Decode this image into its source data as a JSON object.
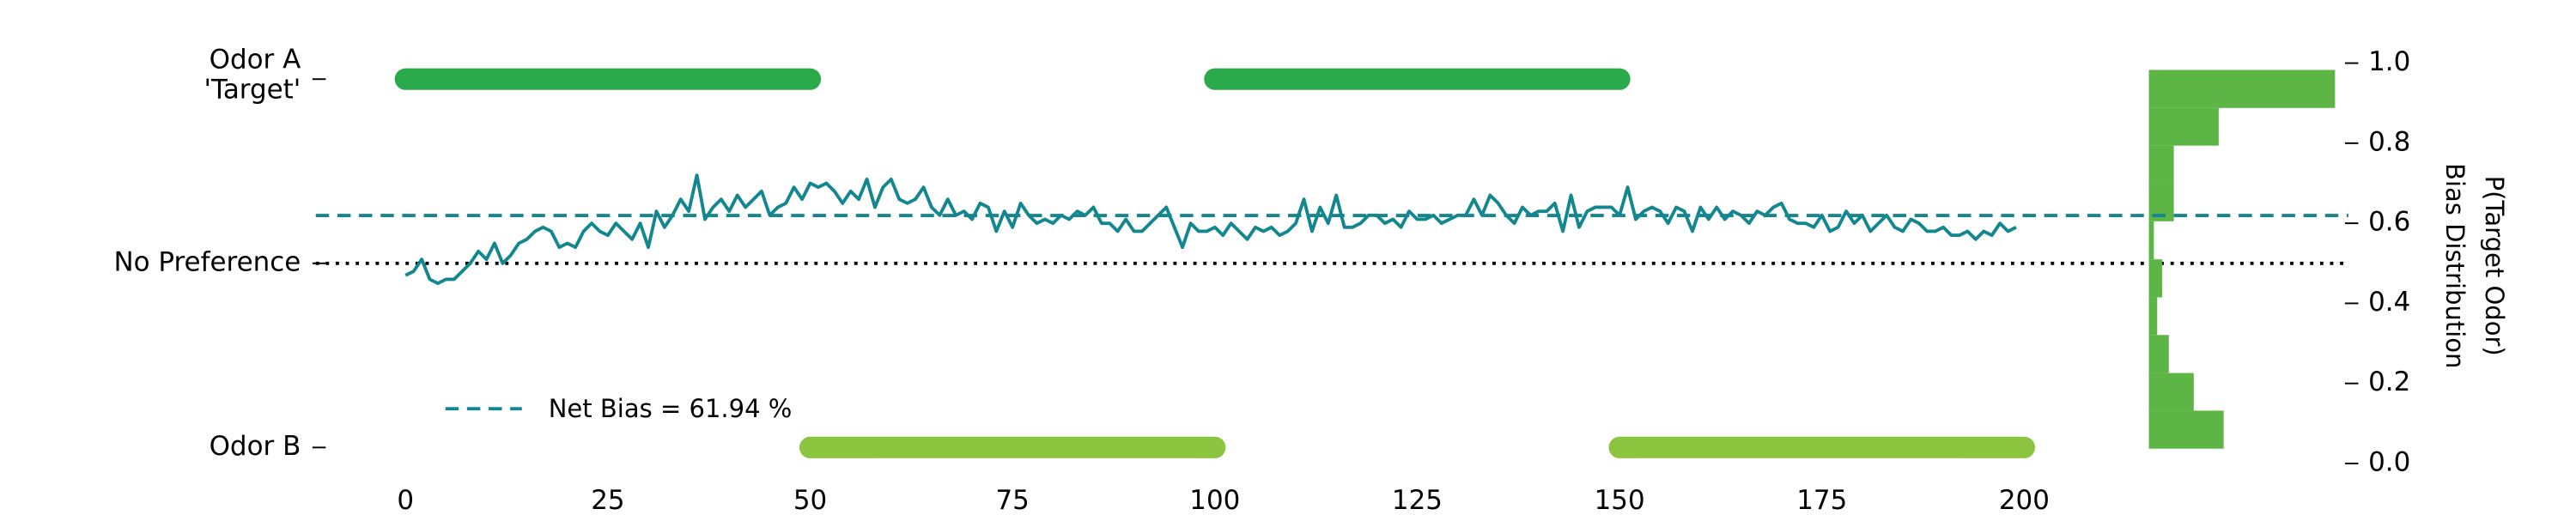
{
  "chart_data": {
    "type": "line",
    "x": [
      0,
      1,
      2,
      3,
      4,
      5,
      6,
      7,
      8,
      9,
      10,
      11,
      12,
      13,
      14,
      15,
      16,
      17,
      18,
      19,
      20,
      21,
      22,
      23,
      24,
      25,
      26,
      27,
      28,
      29,
      30,
      31,
      32,
      33,
      34,
      35,
      36,
      37,
      38,
      39,
      40,
      41,
      42,
      43,
      44,
      45,
      46,
      47,
      48,
      49,
      50,
      51,
      52,
      53,
      54,
      55,
      56,
      57,
      58,
      59,
      60,
      61,
      62,
      63,
      64,
      65,
      66,
      67,
      68,
      69,
      70,
      71,
      72,
      73,
      74,
      75,
      76,
      77,
      78,
      79,
      80,
      81,
      82,
      83,
      84,
      85,
      86,
      87,
      88,
      89,
      90,
      91,
      92,
      93,
      94,
      95,
      96,
      97,
      98,
      99,
      100,
      101,
      102,
      103,
      104,
      105,
      106,
      107,
      108,
      109,
      110,
      111,
      112,
      113,
      114,
      115,
      116,
      117,
      118,
      119,
      120,
      121,
      122,
      123,
      124,
      125,
      126,
      127,
      128,
      129,
      130,
      131,
      132,
      133,
      134,
      135,
      136,
      137,
      138,
      139,
      140,
      141,
      142,
      143,
      144,
      145,
      146,
      147,
      148,
      149,
      150,
      151,
      152,
      153,
      154,
      155,
      156,
      157,
      158,
      159,
      160,
      161,
      162,
      163,
      164,
      165,
      166,
      167,
      168,
      169,
      170,
      171,
      172,
      173,
      174,
      175,
      176,
      177,
      178,
      179,
      180,
      181,
      182,
      183,
      184,
      185,
      186,
      187,
      188,
      189,
      190,
      191,
      192,
      193,
      194,
      195,
      196,
      197,
      198,
      199
    ],
    "series": [
      {
        "color": "#13878f",
        "values": [
          0.47,
          0.48,
          0.51,
          0.46,
          0.45,
          0.46,
          0.46,
          0.48,
          0.5,
          0.53,
          0.51,
          0.55,
          0.5,
          0.52,
          0.55,
          0.56,
          0.58,
          0.59,
          0.58,
          0.54,
          0.55,
          0.54,
          0.58,
          0.6,
          0.58,
          0.57,
          0.6,
          0.58,
          0.56,
          0.6,
          0.54,
          0.63,
          0.59,
          0.62,
          0.66,
          0.63,
          0.72,
          0.61,
          0.64,
          0.66,
          0.63,
          0.67,
          0.64,
          0.66,
          0.68,
          0.62,
          0.64,
          0.65,
          0.69,
          0.66,
          0.7,
          0.69,
          0.7,
          0.68,
          0.65,
          0.68,
          0.66,
          0.71,
          0.64,
          0.69,
          0.71,
          0.66,
          0.65,
          0.66,
          0.69,
          0.64,
          0.62,
          0.66,
          0.62,
          0.63,
          0.61,
          0.65,
          0.64,
          0.58,
          0.63,
          0.59,
          0.65,
          0.62,
          0.6,
          0.61,
          0.6,
          0.62,
          0.61,
          0.63,
          0.62,
          0.64,
          0.6,
          0.6,
          0.58,
          0.61,
          0.58,
          0.58,
          0.6,
          0.62,
          0.64,
          0.59,
          0.54,
          0.6,
          0.58,
          0.58,
          0.59,
          0.57,
          0.6,
          0.58,
          0.56,
          0.59,
          0.58,
          0.59,
          0.57,
          0.58,
          0.6,
          0.66,
          0.58,
          0.64,
          0.6,
          0.67,
          0.59,
          0.59,
          0.6,
          0.62,
          0.62,
          0.6,
          0.61,
          0.59,
          0.63,
          0.61,
          0.61,
          0.62,
          0.6,
          0.61,
          0.62,
          0.62,
          0.66,
          0.62,
          0.67,
          0.65,
          0.62,
          0.6,
          0.64,
          0.62,
          0.63,
          0.63,
          0.65,
          0.58,
          0.67,
          0.59,
          0.63,
          0.64,
          0.64,
          0.64,
          0.62,
          0.69,
          0.61,
          0.63,
          0.64,
          0.63,
          0.6,
          0.64,
          0.63,
          0.58,
          0.64,
          0.61,
          0.64,
          0.61,
          0.63,
          0.62,
          0.6,
          0.63,
          0.62,
          0.64,
          0.65,
          0.61,
          0.6,
          0.6,
          0.59,
          0.62,
          0.58,
          0.59,
          0.63,
          0.6,
          0.62,
          0.58,
          0.6,
          0.62,
          0.59,
          0.58,
          0.61,
          0.6,
          0.58,
          0.58,
          0.59,
          0.57,
          0.57,
          0.58,
          0.56,
          0.58,
          0.57,
          0.6,
          0.58,
          0.59
        ]
      }
    ],
    "xlim": [
      -10,
      210
    ],
    "xticks": [
      0,
      25,
      50,
      75,
      100,
      125,
      150,
      175,
      200
    ],
    "ylim": [
      0,
      1
    ],
    "yticks": [
      {
        "value": 0.96,
        "label": [
          "Odor A",
          "'Target'"
        ]
      },
      {
        "value": 0.5,
        "label": "No Preference"
      },
      {
        "value": 0.04,
        "label": "Odor B"
      }
    ],
    "ytick_colors": [
      "#1a9a55",
      "#000000",
      "#000000"
    ],
    "y2lim": [
      0,
      1
    ],
    "y2ticks": [
      {
        "value": 0,
        "label": "0.0"
      },
      0.2,
      0.4,
      0.6,
      0.8,
      {
        "value": 1,
        "label": "1.0"
      }
    ],
    "y2_label": "P(Target Odor)",
    "y2_label_color": "#13878f",
    "net_bias": {
      "label": "Net Bias = 61.94 %",
      "value": 0.6194,
      "color": "#13878f"
    },
    "odors": [
      {
        "color": "#2aaa4a",
        "y": 0.96,
        "segments": [
          [
            0,
            50
          ],
          [
            100,
            150
          ]
        ]
      },
      {
        "color": "#8bc43f",
        "y": 0.04,
        "segments": [
          [
            50,
            100
          ],
          [
            150,
            200
          ]
        ]
      }
    ],
    "histogram": {
      "label": "Bias Distribution",
      "color": "#5db546",
      "bins": [
        0.037,
        0.132,
        0.226,
        0.321,
        0.415,
        0.51,
        0.605,
        0.699,
        0.794,
        0.888,
        0.983
      ],
      "counts": [
        45,
        27,
        12,
        5,
        8,
        3,
        15,
        15,
        42,
        112
      ]
    }
  }
}
